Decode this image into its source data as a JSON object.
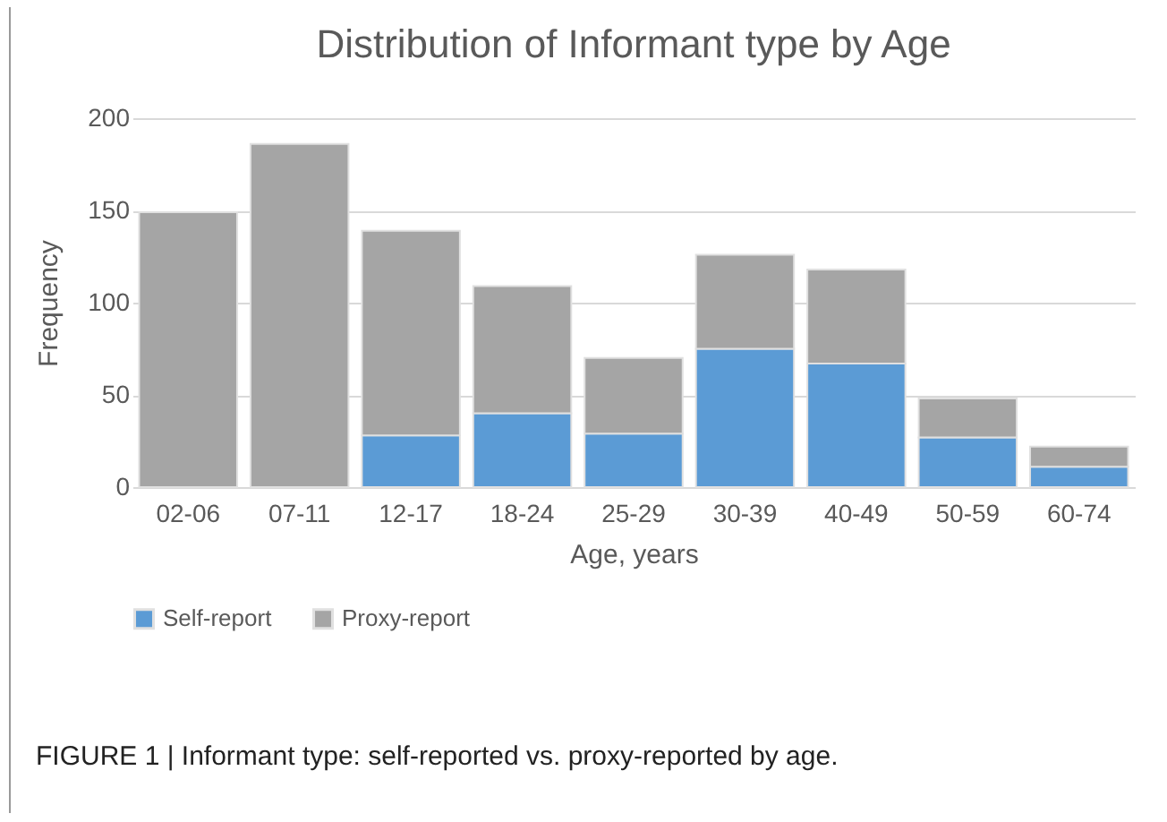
{
  "chart_data": {
    "type": "bar",
    "title": "Distribution of Informant type by Age",
    "xlabel": "Age, years",
    "ylabel": "Frequency",
    "categories": [
      "02-06",
      "07-11",
      "12-17",
      "18-24",
      "25-29",
      "30-39",
      "40-49",
      "50-59",
      "60-74"
    ],
    "stacked": true,
    "series": [
      {
        "name": "Self-report",
        "color": "#5b9bd5",
        "values": [
          0,
          0,
          28,
          40,
          29,
          75,
          67,
          27,
          11
        ]
      },
      {
        "name": "Proxy-report",
        "color": "#a5a5a5",
        "values": [
          149,
          186,
          111,
          69,
          41,
          51,
          51,
          21,
          11
        ]
      }
    ],
    "ylim": [
      0,
      200
    ],
    "yticks": [
      0,
      50,
      100,
      150,
      200
    ],
    "grid": "y",
    "legend": "bottom",
    "annotations": [
      "FIGURE 1 | Informant type: self-reported vs. proxy-reported by age."
    ]
  }
}
